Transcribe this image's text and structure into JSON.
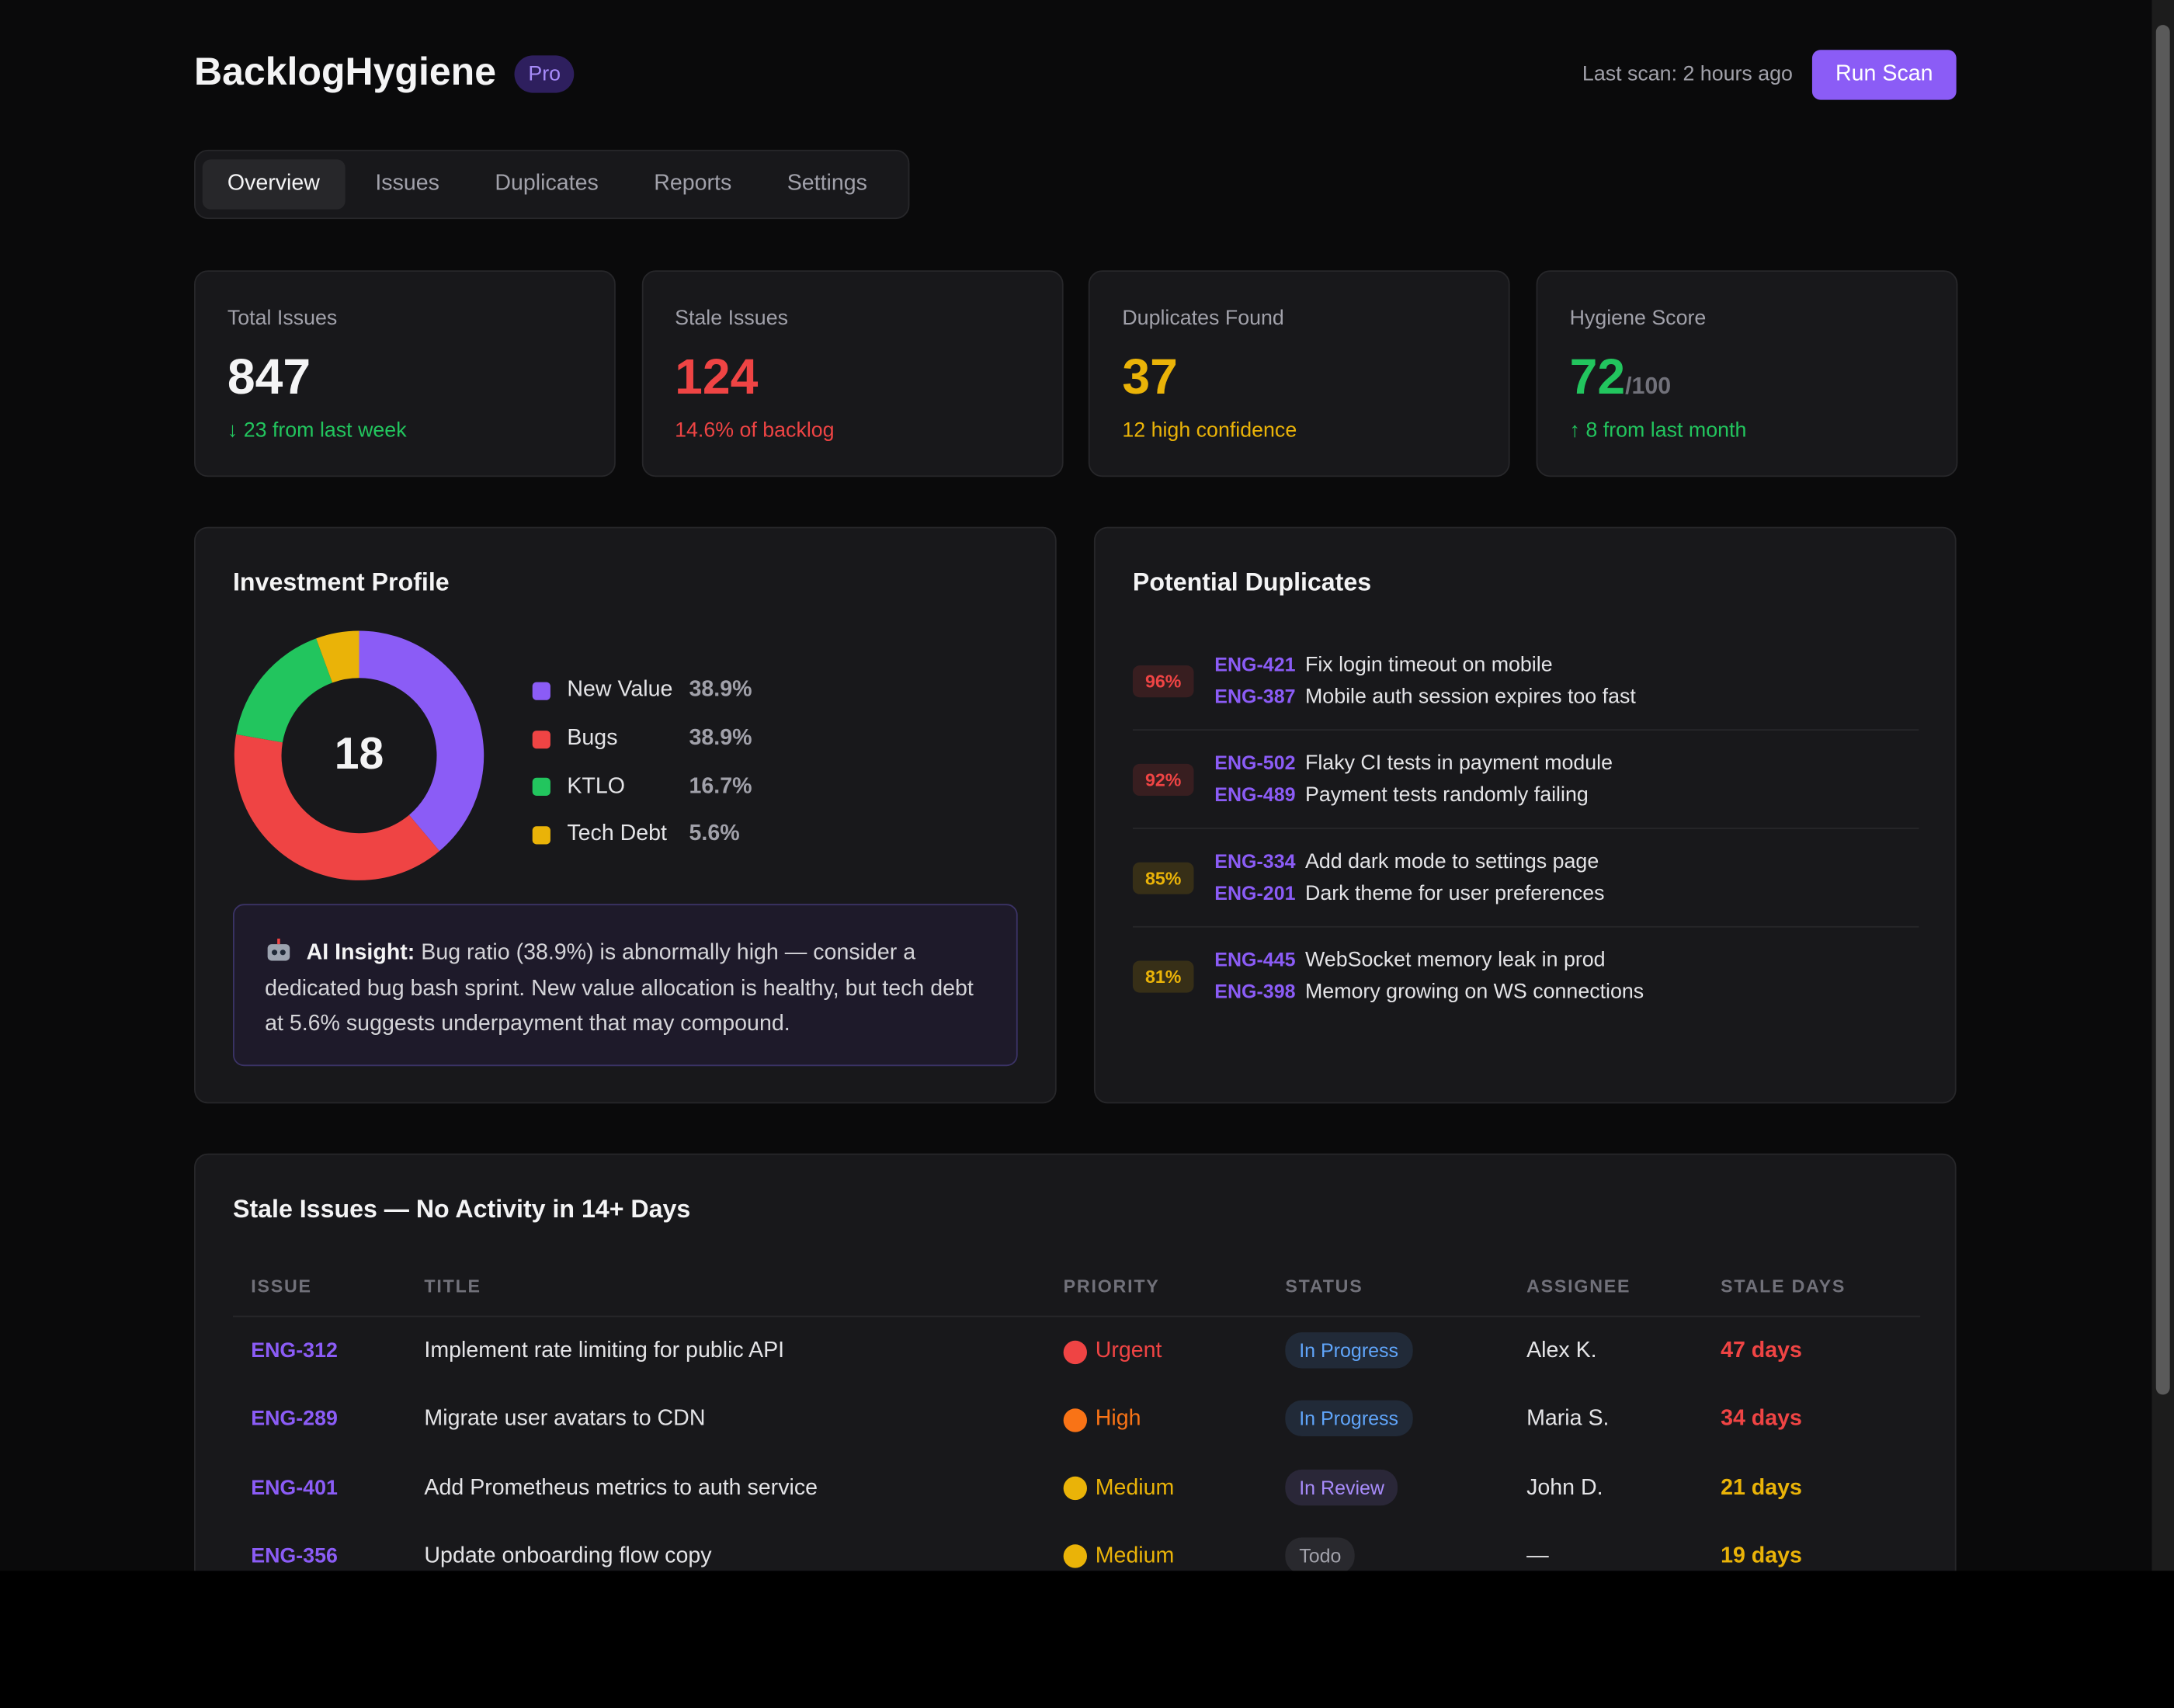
{
  "header": {
    "title": "BacklogHygiene",
    "badge": "Pro",
    "last_scan": "Last scan: 2 hours ago",
    "button": "Run Scan"
  },
  "tabs": [
    "Overview",
    "Issues",
    "Duplicates",
    "Reports",
    "Settings"
  ],
  "stats": [
    {
      "label": "Total Issues",
      "value": "847",
      "note": "↓ 23 from last week",
      "value_color": "#f4f4f5",
      "note_color": "#22c55e"
    },
    {
      "label": "Stale Issues",
      "value": "124",
      "note": "14.6% of backlog",
      "value_color": "#ef4444",
      "note_color": "#ef4444"
    },
    {
      "label": "Duplicates Found",
      "value": "37",
      "note": "12 high confidence",
      "value_color": "#eab308",
      "note_color": "#eab308"
    },
    {
      "label": "Hygiene Score",
      "value": "72",
      "suffix": "/100",
      "note": "↑ 8 from last month",
      "value_color": "#22c55e",
      "note_color": "#22c55e"
    }
  ],
  "investment": {
    "title": "Investment Profile",
    "total": "18",
    "segments": [
      {
        "name": "New Value",
        "value": 38.9,
        "label": "38.9%",
        "color": "#8b5cf6"
      },
      {
        "name": "Bugs",
        "value": 38.9,
        "label": "38.9%",
        "color": "#ef4444"
      },
      {
        "name": "KTLO",
        "value": 16.7,
        "label": "16.7%",
        "color": "#22c55e"
      },
      {
        "name": "Tech Debt",
        "value": 5.6,
        "label": "5.6%",
        "color": "#eab308"
      }
    ],
    "insight_label": "AI Insight:",
    "insight_text": "Bug ratio (38.9%) is abnormally high — consider a dedicated bug bash sprint. New value allocation is healthy, but tech debt at 5.6% suggests underpayment that may compound."
  },
  "duplicates": {
    "title": "Potential Duplicates",
    "items": [
      {
        "confidence": "96%",
        "color": "#ef4444",
        "a_id": "ENG-421",
        "a_title": "Fix login timeout on mobile",
        "b_id": "ENG-387",
        "b_title": "Mobile auth session expires too fast"
      },
      {
        "confidence": "92%",
        "color": "#ef4444",
        "a_id": "ENG-502",
        "a_title": "Flaky CI tests in payment module",
        "b_id": "ENG-489",
        "b_title": "Payment tests randomly failing"
      },
      {
        "confidence": "85%",
        "color": "#eab308",
        "a_id": "ENG-334",
        "a_title": "Add dark mode to settings page",
        "b_id": "ENG-201",
        "b_title": "Dark theme for user preferences"
      },
      {
        "confidence": "81%",
        "color": "#eab308",
        "a_id": "ENG-445",
        "a_title": "WebSocket memory leak in prod",
        "b_id": "ENG-398",
        "b_title": "Memory growing on WS connections"
      }
    ]
  },
  "stale": {
    "title": "Stale Issues — No Activity in 14+ Days",
    "columns": [
      "ISSUE",
      "TITLE",
      "PRIORITY",
      "STATUS",
      "ASSIGNEE",
      "STALE DAYS"
    ],
    "rows": [
      {
        "id": "ENG-312",
        "title": "Implement rate limiting for public API",
        "priority": "Urgent",
        "priority_color": "#ef4444",
        "status": "In Progress",
        "status_color": "#60a5fa",
        "assignee": "Alex K.",
        "days": "47 days",
        "days_color": "#ef4444"
      },
      {
        "id": "ENG-289",
        "title": "Migrate user avatars to CDN",
        "priority": "High",
        "priority_color": "#f97316",
        "status": "In Progress",
        "status_color": "#60a5fa",
        "assignee": "Maria S.",
        "days": "34 days",
        "days_color": "#ef4444"
      },
      {
        "id": "ENG-401",
        "title": "Add Prometheus metrics to auth service",
        "priority": "Medium",
        "priority_color": "#eab308",
        "status": "In Review",
        "status_color": "#a78bfa",
        "assignee": "John D.",
        "days": "21 days",
        "days_color": "#eab308"
      },
      {
        "id": "ENG-356",
        "title": "Update onboarding flow copy",
        "priority": "Medium",
        "priority_color": "#eab308",
        "status": "Todo",
        "status_color": "#a1a1aa",
        "assignee": "—",
        "days": "19 days",
        "days_color": "#eab308"
      }
    ]
  }
}
